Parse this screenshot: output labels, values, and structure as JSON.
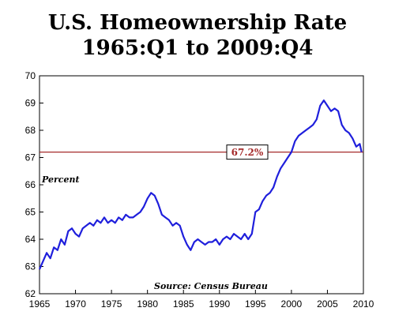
{
  "chart_data": {
    "type": "line",
    "title_line1": "U.S. Homeownership Rate",
    "title_line2": "1965:Q1 to 2009:Q4",
    "ylabel": "Percent",
    "source_note": "Source: Census Bureau",
    "xlim": [
      1965,
      2010
    ],
    "ylim": [
      62,
      70
    ],
    "x_ticks": [
      "1965",
      "1970",
      "1975",
      "1980",
      "1985",
      "1990",
      "1995",
      "2000",
      "2005",
      "2010"
    ],
    "y_ticks": [
      "62",
      "63",
      "64",
      "65",
      "66",
      "67",
      "68",
      "69",
      "70"
    ],
    "reference_line": {
      "value": 67.2,
      "label": "67.2%",
      "color": "#a52a2a"
    },
    "series_color": "#1f1fdc",
    "series": [
      {
        "x": [
          1965.0,
          1965.5,
          1966.0,
          1966.5,
          1967.0,
          1967.5,
          1968.0,
          1968.5,
          1969.0,
          1969.5,
          1970.0,
          1970.5,
          1971.0,
          1971.5,
          1972.0,
          1972.5,
          1973.0,
          1973.5,
          1974.0,
          1974.5,
          1975.0,
          1975.5,
          1976.0,
          1976.5,
          1977.0,
          1977.5,
          1978.0,
          1978.5,
          1979.0,
          1979.5,
          1980.0,
          1980.5,
          1981.0,
          1981.5,
          1982.0,
          1982.5,
          1983.0,
          1983.5,
          1984.0,
          1984.5,
          1985.0,
          1985.5,
          1986.0,
          1986.5,
          1987.0,
          1987.5,
          1988.0,
          1988.5,
          1989.0,
          1989.5,
          1990.0,
          1990.5,
          1991.0,
          1991.5,
          1992.0,
          1992.5,
          1993.0,
          1993.5,
          1994.0,
          1994.5,
          1995.0,
          1995.5,
          1996.0,
          1996.5,
          1997.0,
          1997.5,
          1998.0,
          1998.5,
          1999.0,
          1999.5,
          2000.0,
          2000.5,
          2001.0,
          2001.5,
          2002.0,
          2002.5,
          2003.0,
          2003.5,
          2004.0,
          2004.5,
          2005.0,
          2005.5,
          2006.0,
          2006.5,
          2007.0,
          2007.5,
          2008.0,
          2008.5,
          2009.0,
          2009.5,
          2009.75
        ],
        "values": [
          62.9,
          63.2,
          63.5,
          63.3,
          63.7,
          63.6,
          64.0,
          63.8,
          64.3,
          64.4,
          64.2,
          64.1,
          64.4,
          64.5,
          64.6,
          64.5,
          64.7,
          64.6,
          64.8,
          64.6,
          64.7,
          64.6,
          64.8,
          64.7,
          64.9,
          64.8,
          64.8,
          64.9,
          65.0,
          65.2,
          65.5,
          65.7,
          65.6,
          65.3,
          64.9,
          64.8,
          64.7,
          64.5,
          64.6,
          64.5,
          64.1,
          63.8,
          63.6,
          63.9,
          64.0,
          63.9,
          63.8,
          63.9,
          63.9,
          64.0,
          63.8,
          64.0,
          64.1,
          64.0,
          64.2,
          64.1,
          64.0,
          64.2,
          64.0,
          64.2,
          65.0,
          65.1,
          65.4,
          65.6,
          65.7,
          65.9,
          66.3,
          66.6,
          66.8,
          67.0,
          67.2,
          67.6,
          67.8,
          67.9,
          68.0,
          68.1,
          68.2,
          68.4,
          68.9,
          69.1,
          68.9,
          68.7,
          68.8,
          68.7,
          68.2,
          68.0,
          67.9,
          67.7,
          67.4,
          67.5,
          67.2
        ]
      }
    ]
  }
}
